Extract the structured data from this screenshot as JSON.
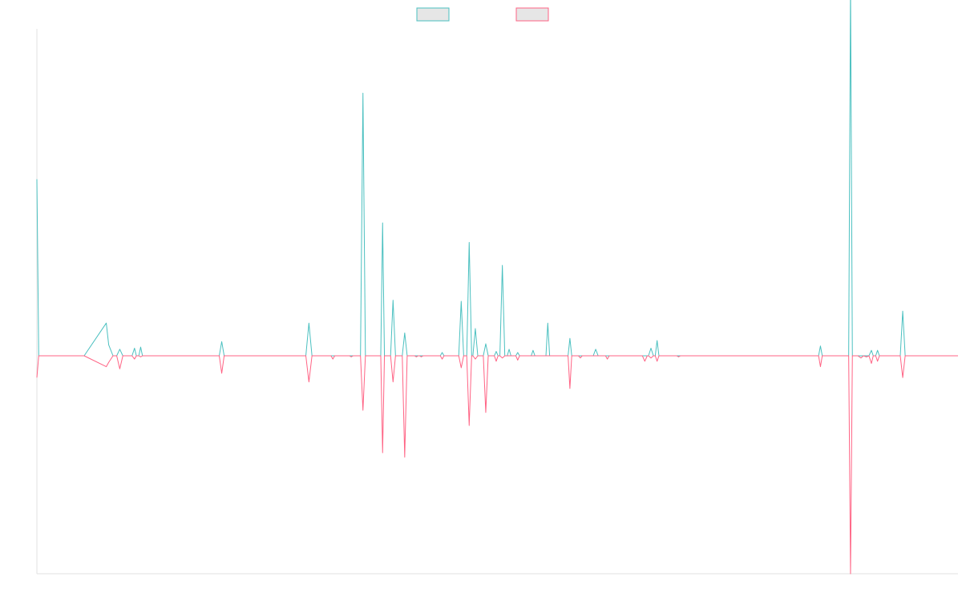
{
  "chart_data": {
    "type": "line",
    "title": "",
    "xlabel": "",
    "ylabel": "",
    "legend_position": "top-center",
    "grid": false,
    "ylim": [
      -1000,
      1500
    ],
    "xlim": [
      0,
      150
    ],
    "series": [
      {
        "name": "",
        "color": "#4bc0c0",
        "points": [
          [
            0,
            810
          ],
          [
            0.3,
            0
          ],
          [
            7.7,
            0
          ],
          [
            11.3,
            150
          ],
          [
            11.7,
            50
          ],
          [
            12.4,
            0
          ],
          [
            13.0,
            0
          ],
          [
            13.5,
            30
          ],
          [
            14.0,
            0
          ],
          [
            15.5,
            0
          ],
          [
            15.9,
            35
          ],
          [
            16.2,
            0
          ],
          [
            16.6,
            0
          ],
          [
            16.9,
            40
          ],
          [
            17.2,
            0
          ],
          [
            29.7,
            0
          ],
          [
            30.1,
            65
          ],
          [
            30.5,
            0
          ],
          [
            43.8,
            0
          ],
          [
            44.3,
            150
          ],
          [
            44.8,
            0
          ],
          [
            52.7,
            0
          ],
          [
            53.1,
            1205
          ],
          [
            53.5,
            0
          ],
          [
            56.0,
            0
          ],
          [
            56.3,
            610
          ],
          [
            56.6,
            0
          ],
          [
            57.6,
            0
          ],
          [
            58.0,
            255
          ],
          [
            58.4,
            0
          ],
          [
            59.5,
            0
          ],
          [
            59.9,
            105
          ],
          [
            60.3,
            0
          ],
          [
            65.7,
            0
          ],
          [
            66.0,
            15
          ],
          [
            66.3,
            0
          ],
          [
            68.7,
            0
          ],
          [
            69.1,
            250
          ],
          [
            69.5,
            0
          ],
          [
            70.0,
            0
          ],
          [
            70.4,
            520
          ],
          [
            70.8,
            0
          ],
          [
            71.0,
            0
          ],
          [
            71.4,
            125
          ],
          [
            71.8,
            0
          ],
          [
            72.7,
            0
          ],
          [
            73.1,
            55
          ],
          [
            73.5,
            0
          ],
          [
            74.5,
            0
          ],
          [
            74.8,
            20
          ],
          [
            75.1,
            0
          ],
          [
            75.4,
            0
          ],
          [
            75.8,
            415
          ],
          [
            76.2,
            0
          ],
          [
            76.6,
            0
          ],
          [
            76.9,
            30
          ],
          [
            77.2,
            0
          ],
          [
            78.0,
            0
          ],
          [
            78.3,
            15
          ],
          [
            78.6,
            0
          ],
          [
            80.5,
            0
          ],
          [
            80.8,
            25
          ],
          [
            81.1,
            0
          ],
          [
            82.9,
            0
          ],
          [
            83.2,
            150
          ],
          [
            83.5,
            0
          ],
          [
            86.5,
            0
          ],
          [
            86.8,
            80
          ],
          [
            87.1,
            0
          ],
          [
            90.6,
            0
          ],
          [
            91.0,
            30
          ],
          [
            91.4,
            0
          ],
          [
            99.6,
            0
          ],
          [
            100.0,
            35
          ],
          [
            100.4,
            0
          ],
          [
            100.7,
            0
          ],
          [
            101.0,
            70
          ],
          [
            101.3,
            0
          ],
          [
            101.6,
            0
          ],
          [
            127.3,
            0
          ],
          [
            127.6,
            45
          ],
          [
            127.9,
            0
          ],
          [
            132.2,
            0
          ],
          [
            132.5,
            1700
          ],
          [
            132.8,
            0
          ],
          [
            133.7,
            0
          ],
          [
            134.2,
            0
          ],
          [
            134.6,
            0
          ],
          [
            135.1,
            0
          ],
          [
            135.5,
            0
          ],
          [
            135.9,
            25
          ],
          [
            136.2,
            0
          ],
          [
            136.6,
            0
          ],
          [
            136.9,
            25
          ],
          [
            137.2,
            0
          ],
          [
            140.6,
            0
          ],
          [
            141.0,
            205
          ],
          [
            141.4,
            0
          ],
          [
            150,
            0
          ]
        ]
      },
      {
        "name": "",
        "color": "#ff6384",
        "points": [
          [
            0,
            -100
          ],
          [
            0.3,
            0
          ],
          [
            7.7,
            0
          ],
          [
            11.3,
            -50
          ],
          [
            11.7,
            -30
          ],
          [
            12.4,
            0
          ],
          [
            13.0,
            0
          ],
          [
            13.5,
            -60
          ],
          [
            14.0,
            0
          ],
          [
            15.5,
            0
          ],
          [
            15.9,
            -15
          ],
          [
            16.2,
            0
          ],
          [
            16.6,
            0
          ],
          [
            16.9,
            -5
          ],
          [
            17.2,
            0
          ],
          [
            29.7,
            0
          ],
          [
            30.1,
            -80
          ],
          [
            30.5,
            0
          ],
          [
            43.8,
            0
          ],
          [
            44.3,
            -120
          ],
          [
            44.8,
            0
          ],
          [
            47.9,
            0
          ],
          [
            48.2,
            -15
          ],
          [
            48.5,
            0
          ],
          [
            50.9,
            0
          ],
          [
            51.2,
            -5
          ],
          [
            51.5,
            0
          ],
          [
            52.7,
            0
          ],
          [
            53.1,
            -250
          ],
          [
            53.5,
            0
          ],
          [
            56.0,
            0
          ],
          [
            56.3,
            -445
          ],
          [
            56.6,
            0
          ],
          [
            57.6,
            0
          ],
          [
            58.0,
            -120
          ],
          [
            58.4,
            0
          ],
          [
            59.5,
            0
          ],
          [
            59.9,
            -465
          ],
          [
            60.3,
            0
          ],
          [
            61.5,
            0
          ],
          [
            61.8,
            -5
          ],
          [
            62.1,
            0
          ],
          [
            62.3,
            0
          ],
          [
            62.6,
            -5
          ],
          [
            62.9,
            0
          ],
          [
            65.7,
            0
          ],
          [
            66.0,
            -15
          ],
          [
            66.3,
            0
          ],
          [
            68.7,
            0
          ],
          [
            69.1,
            -55
          ],
          [
            69.5,
            0
          ],
          [
            70.0,
            0
          ],
          [
            70.4,
            -320
          ],
          [
            70.8,
            0
          ],
          [
            71.0,
            0
          ],
          [
            71.4,
            -15
          ],
          [
            71.8,
            0
          ],
          [
            72.7,
            0
          ],
          [
            73.1,
            -260
          ],
          [
            73.5,
            0
          ],
          [
            74.5,
            0
          ],
          [
            74.8,
            -25
          ],
          [
            75.1,
            0
          ],
          [
            75.4,
            0
          ],
          [
            75.8,
            -10
          ],
          [
            76.2,
            0
          ],
          [
            78.0,
            0
          ],
          [
            78.3,
            -20
          ],
          [
            78.6,
            0
          ],
          [
            86.5,
            0
          ],
          [
            86.8,
            -150
          ],
          [
            87.1,
            0
          ],
          [
            88.2,
            0
          ],
          [
            88.5,
            -10
          ],
          [
            88.8,
            0
          ],
          [
            92.6,
            0
          ],
          [
            92.9,
            -15
          ],
          [
            93.2,
            0
          ],
          [
            98.6,
            0
          ],
          [
            99.0,
            -25
          ],
          [
            99.4,
            0
          ],
          [
            99.6,
            0
          ],
          [
            100.0,
            -10
          ],
          [
            100.4,
            0
          ],
          [
            100.7,
            0
          ],
          [
            101.0,
            -25
          ],
          [
            101.3,
            0
          ],
          [
            104.2,
            0
          ],
          [
            104.5,
            -5
          ],
          [
            104.8,
            0
          ],
          [
            127.3,
            0
          ],
          [
            127.6,
            -50
          ],
          [
            127.9,
            0
          ],
          [
            132.2,
            0
          ],
          [
            132.5,
            -1000
          ],
          [
            132.8,
            0
          ],
          [
            133.7,
            0
          ],
          [
            134.2,
            -10
          ],
          [
            134.6,
            0
          ],
          [
            135.1,
            -5
          ],
          [
            135.5,
            0
          ],
          [
            135.9,
            -35
          ],
          [
            136.2,
            0
          ],
          [
            136.6,
            0
          ],
          [
            136.9,
            -25
          ],
          [
            137.2,
            0
          ],
          [
            140.6,
            0
          ],
          [
            141.0,
            -100
          ],
          [
            141.4,
            0
          ],
          [
            150,
            0
          ]
        ]
      }
    ]
  }
}
